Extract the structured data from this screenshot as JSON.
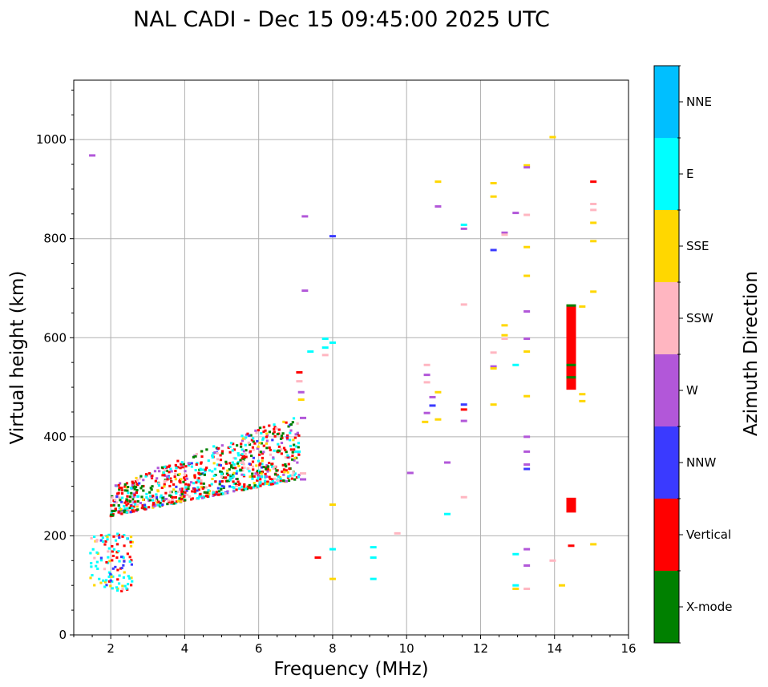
{
  "chart_data": {
    "type": "scatter",
    "title": "NAL CADI - Dec 15 09:45:00 2025 UTC",
    "xlabel": "Frequency (MHz)",
    "ylabel": "Virtual height (km)",
    "xlim": [
      1,
      16
    ],
    "ylim": [
      0,
      1120
    ],
    "xticks": [
      2,
      4,
      6,
      8,
      10,
      12,
      14,
      16
    ],
    "xticklabels": [
      "2",
      "4",
      "6",
      "8",
      "10",
      "12",
      "14",
      "16"
    ],
    "yticks": [
      0,
      200,
      400,
      600,
      800,
      1000
    ],
    "yticklabels": [
      "0",
      "200",
      "400",
      "600",
      "800",
      "1000"
    ],
    "grid": true,
    "colorbar": {
      "label": "Azimuth Direction",
      "categories": [
        {
          "name": "X-mode",
          "color": "#008000"
        },
        {
          "name": "Vertical",
          "color": "#ff0000"
        },
        {
          "name": "NNW",
          "color": "#3a3aff"
        },
        {
          "name": "W",
          "color": "#b257d9"
        },
        {
          "name": "SSW",
          "color": "#ffb6c1"
        },
        {
          "name": "SSE",
          "color": "#ffd700"
        },
        {
          "name": "E",
          "color": "#00ffff"
        },
        {
          "name": "NNE",
          "color": "#00bfff"
        }
      ]
    },
    "points": [
      {
        "f": 1.5,
        "h": 968,
        "c": "W"
      },
      {
        "f": 7.25,
        "h": 845,
        "c": "W"
      },
      {
        "f": 7.25,
        "h": 695,
        "c": "W"
      },
      {
        "f": 8.0,
        "h": 805,
        "c": "NNW"
      },
      {
        "f": 7.8,
        "h": 598,
        "c": "E"
      },
      {
        "f": 7.8,
        "h": 580,
        "c": "E"
      },
      {
        "f": 8.0,
        "h": 590,
        "c": "E"
      },
      {
        "f": 7.8,
        "h": 565,
        "c": "SSW"
      },
      {
        "f": 7.4,
        "h": 572,
        "c": "E"
      },
      {
        "f": 7.1,
        "h": 530,
        "c": "Vertical"
      },
      {
        "f": 7.1,
        "h": 512,
        "c": "SSW"
      },
      {
        "f": 7.15,
        "h": 490,
        "c": "W"
      },
      {
        "f": 7.15,
        "h": 475,
        "c": "SSE"
      },
      {
        "f": 7.2,
        "h": 438,
        "c": "W"
      },
      {
        "f": 7.2,
        "h": 326,
        "c": "SSW"
      },
      {
        "f": 7.2,
        "h": 314,
        "c": "W"
      },
      {
        "f": 7.05,
        "h": 370,
        "c": "E"
      },
      {
        "f": 7.6,
        "h": 156,
        "c": "Vertical"
      },
      {
        "f": 8.0,
        "h": 263,
        "c": "SSE"
      },
      {
        "f": 8.0,
        "h": 173,
        "c": "E"
      },
      {
        "f": 8.0,
        "h": 113,
        "c": "SSE"
      },
      {
        "f": 9.1,
        "h": 177,
        "c": "E"
      },
      {
        "f": 9.1,
        "h": 156,
        "c": "E"
      },
      {
        "f": 9.1,
        "h": 113,
        "c": "E"
      },
      {
        "f": 9.75,
        "h": 205,
        "c": "SSW"
      },
      {
        "f": 10.1,
        "h": 327,
        "c": "W"
      },
      {
        "f": 10.5,
        "h": 430,
        "c": "SSE"
      },
      {
        "f": 10.55,
        "h": 545,
        "c": "SSW"
      },
      {
        "f": 10.55,
        "h": 525,
        "c": "W"
      },
      {
        "f": 10.55,
        "h": 510,
        "c": "SSW"
      },
      {
        "f": 10.55,
        "h": 448,
        "c": "W"
      },
      {
        "f": 10.7,
        "h": 480,
        "c": "W"
      },
      {
        "f": 10.7,
        "h": 463,
        "c": "NNW"
      },
      {
        "f": 10.85,
        "h": 915,
        "c": "SSE"
      },
      {
        "f": 10.85,
        "h": 865,
        "c": "W"
      },
      {
        "f": 10.85,
        "h": 490,
        "c": "SSE"
      },
      {
        "f": 10.85,
        "h": 435,
        "c": "SSE"
      },
      {
        "f": 11.1,
        "h": 348,
        "c": "W"
      },
      {
        "f": 11.1,
        "h": 244,
        "c": "E"
      },
      {
        "f": 11.55,
        "h": 828,
        "c": "E"
      },
      {
        "f": 11.55,
        "h": 820,
        "c": "W"
      },
      {
        "f": 11.55,
        "h": 667,
        "c": "SSW"
      },
      {
        "f": 11.55,
        "h": 465,
        "c": "NNW"
      },
      {
        "f": 11.55,
        "h": 455,
        "c": "Vertical"
      },
      {
        "f": 11.55,
        "h": 432,
        "c": "W"
      },
      {
        "f": 11.55,
        "h": 278,
        "c": "SSW"
      },
      {
        "f": 12.35,
        "h": 912,
        "c": "SSE"
      },
      {
        "f": 12.35,
        "h": 885,
        "c": "SSE"
      },
      {
        "f": 12.35,
        "h": 777,
        "c": "NNW"
      },
      {
        "f": 12.35,
        "h": 570,
        "c": "SSW"
      },
      {
        "f": 12.35,
        "h": 542,
        "c": "W"
      },
      {
        "f": 12.35,
        "h": 538,
        "c": "SSE"
      },
      {
        "f": 12.35,
        "h": 465,
        "c": "SSE"
      },
      {
        "f": 12.65,
        "h": 812,
        "c": "W"
      },
      {
        "f": 12.65,
        "h": 808,
        "c": "SSW"
      },
      {
        "f": 12.65,
        "h": 625,
        "c": "SSE"
      },
      {
        "f": 12.65,
        "h": 605,
        "c": "SSE"
      },
      {
        "f": 12.65,
        "h": 598,
        "c": "SSW"
      },
      {
        "f": 12.95,
        "h": 852,
        "c": "W"
      },
      {
        "f": 12.95,
        "h": 545,
        "c": "E"
      },
      {
        "f": 12.95,
        "h": 163,
        "c": "E"
      },
      {
        "f": 12.95,
        "h": 100,
        "c": "E"
      },
      {
        "f": 12.95,
        "h": 93,
        "c": "SSE"
      },
      {
        "f": 13.25,
        "h": 948,
        "c": "SSE"
      },
      {
        "f": 13.25,
        "h": 944,
        "c": "W"
      },
      {
        "f": 13.25,
        "h": 848,
        "c": "SSW"
      },
      {
        "f": 13.25,
        "h": 783,
        "c": "SSE"
      },
      {
        "f": 13.25,
        "h": 725,
        "c": "SSE"
      },
      {
        "f": 13.25,
        "h": 653,
        "c": "W"
      },
      {
        "f": 13.25,
        "h": 598,
        "c": "W"
      },
      {
        "f": 13.25,
        "h": 572,
        "c": "SSE"
      },
      {
        "f": 13.25,
        "h": 482,
        "c": "SSE"
      },
      {
        "f": 13.25,
        "h": 400,
        "c": "W"
      },
      {
        "f": 13.25,
        "h": 370,
        "c": "W"
      },
      {
        "f": 13.25,
        "h": 344,
        "c": "W"
      },
      {
        "f": 13.25,
        "h": 335,
        "c": "NNW"
      },
      {
        "f": 13.25,
        "h": 173,
        "c": "W"
      },
      {
        "f": 13.25,
        "h": 140,
        "c": "W"
      },
      {
        "f": 13.25,
        "h": 93,
        "c": "SSW"
      },
      {
        "f": 13.95,
        "h": 1005,
        "c": "SSE"
      },
      {
        "f": 13.95,
        "h": 150,
        "c": "SSW"
      },
      {
        "f": 14.2,
        "h": 100,
        "c": "SSE"
      },
      {
        "f": 14.45,
        "h": 180,
        "c": "Vertical"
      },
      {
        "f": 14.75,
        "h": 663,
        "c": "SSE"
      },
      {
        "f": 14.75,
        "h": 486,
        "c": "SSE"
      },
      {
        "f": 14.75,
        "h": 472,
        "c": "SSE"
      },
      {
        "f": 15.05,
        "h": 915,
        "c": "Vertical"
      },
      {
        "f": 15.05,
        "h": 870,
        "c": "SSW"
      },
      {
        "f": 15.05,
        "h": 858,
        "c": "SSW"
      },
      {
        "f": 15.05,
        "h": 832,
        "c": "SSE"
      },
      {
        "f": 15.05,
        "h": 795,
        "c": "SSE"
      },
      {
        "f": 15.05,
        "h": 693,
        "c": "SSE"
      },
      {
        "f": 15.05,
        "h": 183,
        "c": "SSE"
      }
    ],
    "segments": [
      {
        "f": 14.45,
        "h0": 495,
        "h1": 667,
        "c": "Vertical"
      },
      {
        "f": 14.45,
        "h0": 247,
        "h1": 277,
        "c": "Vertical"
      }
    ],
    "clusters": [
      {
        "name": "F-layer trace",
        "f0": 2.0,
        "f1": 7.1,
        "h_low_start": 240,
        "h_low_end": 315,
        "h_high_start": 300,
        "h_high_end": 450,
        "count": 900,
        "mix": {
          "Vertical": 0.3,
          "X-mode": 0.2,
          "E": 0.2,
          "W": 0.1,
          "SSW": 0.1,
          "NNW": 0.05,
          "SSE": 0.05
        }
      },
      {
        "name": "E-layer trace",
        "f0": 1.45,
        "f1": 2.6,
        "h0": 88,
        "h1": 205,
        "count": 120,
        "mix": {
          "E": 0.45,
          "Vertical": 0.2,
          "SSE": 0.15,
          "SSW": 0.1,
          "NNW": 0.1
        }
      }
    ],
    "gaps": [
      {
        "f": 14.45,
        "h": 545,
        "c": "X-mode"
      },
      {
        "f": 14.45,
        "h": 520,
        "c": "X-mode"
      },
      {
        "f": 14.45,
        "h": 665,
        "c": "X-mode"
      }
    ]
  }
}
